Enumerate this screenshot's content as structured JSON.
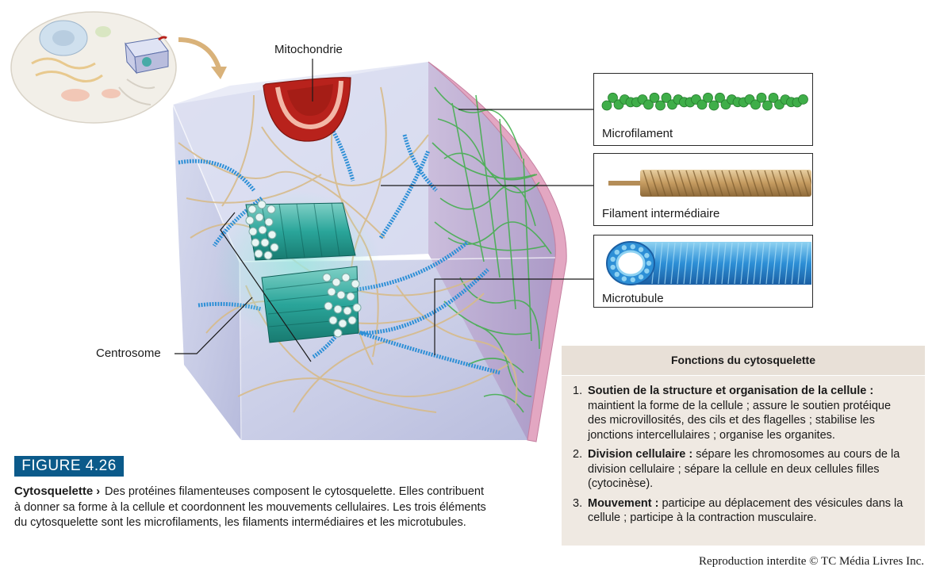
{
  "labels": {
    "mitochondrie": "Mitochondrie",
    "centrosome": "Centrosome",
    "microfilament": "Microfilament",
    "filament_intermediaire": "Filament intermédiaire",
    "microtubule": "Microtubule"
  },
  "figure": {
    "tag": "FIGURE 4.26",
    "title": "Cytosquelette",
    "arrow": "›",
    "caption": "Des protéines filamenteuses composent le cytosquelette. Elles contribuent à donner sa forme à la cellule et coordonnent les mouvements cellulaires. Les trois éléments du cytosquelette sont les microfilaments, les filaments intermédiaires et les microtubules."
  },
  "functions": {
    "heading": "Fonctions du cytosquelette",
    "items": [
      {
        "num": "1.",
        "title": "Soutien de la structure et organisation de la cellule :",
        "text": "maintient la forme de la cellule ; assure le soutien protéique des microvillosités, des cils et des flagelles ; stabilise les jonctions intercellulaires ; organise les organites."
      },
      {
        "num": "2.",
        "title": "Division cellulaire :",
        "text": "sépare les chromosomes au cours de la division cellulaire ; sépare la cellule en deux cellules filles (cytocinèse)."
      },
      {
        "num": "3.",
        "title": "Mouvement :",
        "text": "participe au déplacement des vésicules dans la cellule ; participe à la contraction musculaire."
      }
    ]
  },
  "copyright": "Reproduction interdite © TC Média Livres Inc.",
  "colors": {
    "figure_tag": "#0b5a8a",
    "microfilament": "#3fae49",
    "intermediate_filament": "#c9a46f",
    "microtubule": "#2d8fd6",
    "centrosome": "#2aa59a",
    "mitochondria": "#b8221c",
    "membrane": "#e3a7c2",
    "function_box": "#efe9e2"
  }
}
